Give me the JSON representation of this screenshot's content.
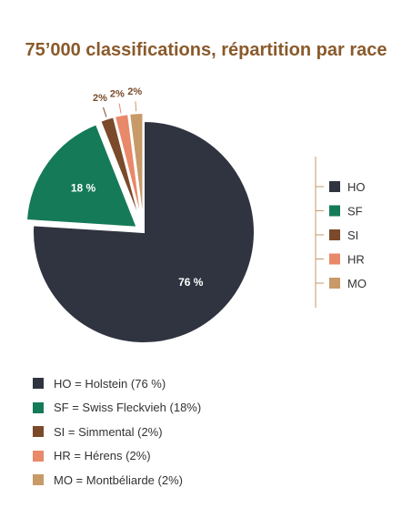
{
  "title": "75’000 classifications, répartition par race",
  "chart_data": {
    "type": "pie",
    "title": "75’000 classifications, répartition par race",
    "categories": [
      "HO",
      "SF",
      "SI",
      "HR",
      "MO"
    ],
    "values": [
      76,
      18,
      2,
      2,
      2
    ],
    "slice_labels": [
      "76 %",
      "18 %",
      "2%",
      "2%",
      "2%"
    ],
    "colors": [
      "#2f3440",
      "#157a57",
      "#7a4a2a",
      "#e8896a",
      "#c79a68"
    ],
    "label_colors": [
      "#ffffff",
      "#ffffff",
      "#7a4a2a",
      "#7a4a2a",
      "#7a4a2a"
    ],
    "legend_position": "right",
    "legend_bottom": [
      "HO = Holstein (76 %)",
      "SF = Swiss Fleckvieh (18%)",
      "SI = Simmental (2%)",
      "HR = Hérens (2%)",
      "MO = Montbéliarde (2%)"
    ]
  }
}
